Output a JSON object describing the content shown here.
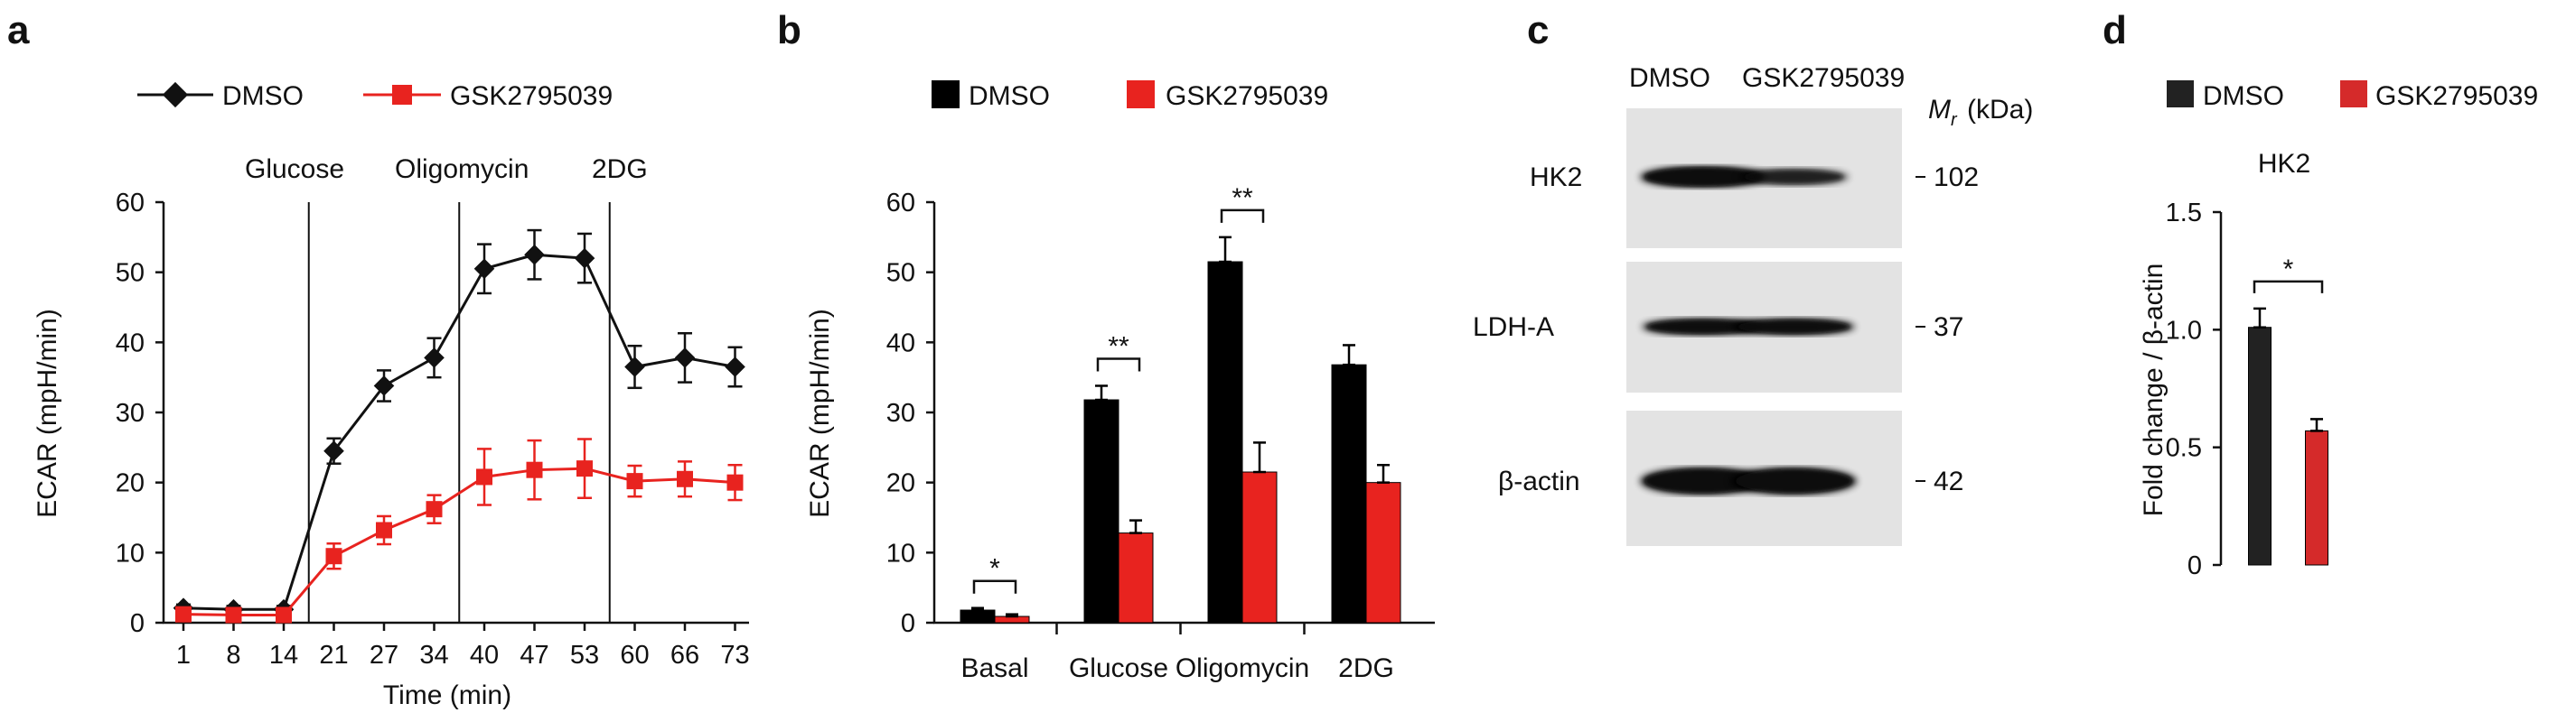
{
  "panel_labels": {
    "a": "a",
    "b": "b",
    "c": "c",
    "d": "d"
  },
  "colors": {
    "dmso": "#111111",
    "gsk": "#e8231f",
    "gsk_bar_d": "#d52a2a",
    "dmso_bar_d": "#222222"
  },
  "chart_data": [
    {
      "id": "a",
      "type": "line",
      "xlabel": "Time (min)",
      "ylabel": "ECAR (mpH/min)",
      "ylim": [
        0,
        60
      ],
      "yticks": [
        0,
        10,
        20,
        30,
        40,
        50,
        60
      ],
      "x": [
        "1",
        "8",
        "14",
        "21",
        "27",
        "34",
        "40",
        "47",
        "53",
        "60",
        "66",
        "73"
      ],
      "injections": [
        "Glucose",
        "Oligomycin",
        "2DG"
      ],
      "series": [
        {
          "name": "DMSO",
          "marker": "diamond",
          "color": "#111111",
          "values": [
            2.1,
            1.9,
            1.9,
            24.5,
            33.8,
            37.8,
            50.5,
            52.5,
            52.0,
            36.5,
            37.8,
            36.5
          ],
          "errors": [
            0.5,
            0.5,
            0.5,
            1.8,
            2.2,
            2.8,
            3.5,
            3.5,
            3.5,
            3.0,
            3.5,
            2.8
          ]
        },
        {
          "name": "GSK2795039",
          "marker": "square",
          "color": "#e8231f",
          "values": [
            1.2,
            1.1,
            1.1,
            9.5,
            13.2,
            16.2,
            20.8,
            21.8,
            22.0,
            20.2,
            20.5,
            20.0
          ],
          "errors": [
            0.5,
            0.5,
            0.5,
            1.8,
            2.0,
            2.0,
            4.0,
            4.2,
            4.2,
            2.2,
            2.5,
            2.5
          ]
        }
      ],
      "legend_position": "top"
    },
    {
      "id": "b",
      "type": "bar",
      "ylabel": "ECAR (mpH/min)",
      "ylim": [
        0,
        60
      ],
      "yticks": [
        0,
        10,
        20,
        30,
        40,
        50,
        60
      ],
      "categories": [
        "Basal",
        "Glucose",
        "Oligomycin",
        "2DG"
      ],
      "series": [
        {
          "name": "DMSO",
          "color": "#000000",
          "values": [
            1.8,
            31.8,
            51.5,
            36.8
          ],
          "errors": [
            0.3,
            2.0,
            3.5,
            2.8
          ]
        },
        {
          "name": "GSK2795039",
          "color": "#e8231f",
          "values": [
            0.9,
            12.8,
            21.5,
            20.0
          ],
          "errors": [
            0.3,
            1.8,
            4.2,
            2.5
          ]
        }
      ],
      "significance": [
        "*",
        "**",
        "**",
        ""
      ],
      "legend_position": "top"
    },
    {
      "id": "c",
      "type": "blot",
      "lanes": [
        "DMSO",
        "GSK2795039"
      ],
      "mw_label": "M",
      "mw_sub": "r",
      "mw_unit": "(kDa)",
      "rows": [
        {
          "name": "HK2",
          "mw": "102",
          "intensity": [
            1.0,
            0.55
          ]
        },
        {
          "name": "LDH-A",
          "mw": "37",
          "intensity": [
            0.9,
            0.9
          ]
        },
        {
          "name": "β-actin",
          "mw": "42",
          "intensity": [
            1.0,
            1.0
          ]
        }
      ]
    },
    {
      "id": "d",
      "type": "bar",
      "title": "HK2",
      "ylabel": "Fold change / β-actin",
      "ylim": [
        0,
        1.5
      ],
      "yticks": [
        "0",
        "0.5",
        "1.0",
        "1.5"
      ],
      "categories": [
        "DMSO",
        "GSK2795039"
      ],
      "values": [
        1.01,
        0.57
      ],
      "errors": [
        0.08,
        0.05
      ],
      "colors": [
        "#222222",
        "#d52a2a"
      ],
      "significance": "*",
      "legend": [
        "DMSO",
        "GSK2795039"
      ],
      "legend_position": "top"
    }
  ]
}
